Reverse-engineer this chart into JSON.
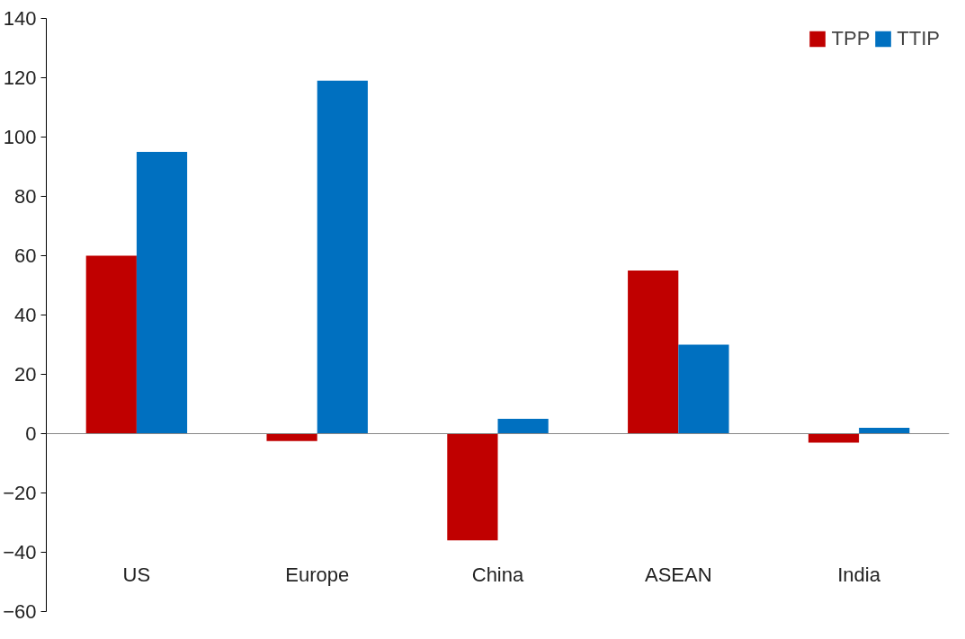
{
  "chart_data": {
    "type": "bar",
    "categories": [
      "US",
      "Europe",
      "China",
      "ASEAN",
      "India"
    ],
    "series": [
      {
        "name": "TPP",
        "color": "#c00000",
        "values": [
          60,
          -2.5,
          -36,
          55,
          -3
        ]
      },
      {
        "name": "TTIP",
        "color": "#0070c0",
        "values": [
          95,
          119,
          5,
          30,
          2
        ]
      }
    ],
    "ylim": [
      -60,
      140
    ],
    "yticks": [
      -60,
      -40,
      -20,
      0,
      20,
      40,
      60,
      80,
      100,
      120,
      140
    ],
    "ref_lines": [
      {
        "axis": "y",
        "value": 0,
        "color": "#888888"
      }
    ],
    "grid": false,
    "legend": "top right"
  }
}
